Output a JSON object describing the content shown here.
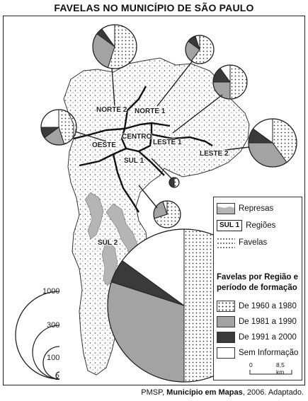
{
  "title": "FAVELAS NO MUNICÍPIO DE SÃO PAULO",
  "regions": {
    "norte2": "NORTE 2",
    "norte1": "NORTE 1",
    "centro": "CENTRO",
    "oeste": "OESTE",
    "leste1": "LESTE 1",
    "leste2": "LESTE 2",
    "sul1": "SUL 1",
    "sul2": "SUL 2"
  },
  "legend": {
    "represas": "Represas",
    "regioes_box": "SUL 1",
    "regioes": "Regiões",
    "favelas": "Favelas",
    "heading": "Favelas por Região e período de formação",
    "periods": [
      "De 1960 a 1980",
      "De 1981 a 1990",
      "De 1991 a 2000",
      "Sem Informação"
    ]
  },
  "size_reference": [
    "1000",
    "300",
    "100",
    "2"
  ],
  "scale_label": "8,5 km",
  "source": {
    "prefix": "PMSP, ",
    "work": "Município em Mapas",
    "suffix": ", 2006. Adaptado."
  },
  "colors": {
    "p1960": "dotted",
    "p1981": "#a3a3a3",
    "p1991": "#3a3a3a",
    "none": "#ffffff",
    "represas": "#b5b5b5"
  },
  "pie_data": [
    {
      "region": "NORTE 2",
      "shares": [
        0.55,
        0.3,
        0.05,
        0.1
      ]
    },
    {
      "region": "NORTE 1",
      "shares": [
        0.6,
        0.25,
        0.1,
        0.05
      ]
    },
    {
      "region": "LESTE 1",
      "shares": [
        0.5,
        0.25,
        0.15,
        0.1
      ]
    },
    {
      "region": "OESTE",
      "shares": [
        0.45,
        0.2,
        0.1,
        0.25
      ]
    },
    {
      "region": "LESTE 2",
      "shares": [
        0.4,
        0.35,
        0.1,
        0.15
      ]
    },
    {
      "region": "CENTRO",
      "shares": [
        0.5,
        0.0,
        0.5,
        0.0
      ]
    },
    {
      "region": "SUL 1",
      "shares": [
        0.7,
        0.25,
        0.0,
        0.05
      ]
    },
    {
      "region": "SUL 2",
      "shares": [
        0.5,
        0.3,
        0.05,
        0.15
      ]
    }
  ]
}
